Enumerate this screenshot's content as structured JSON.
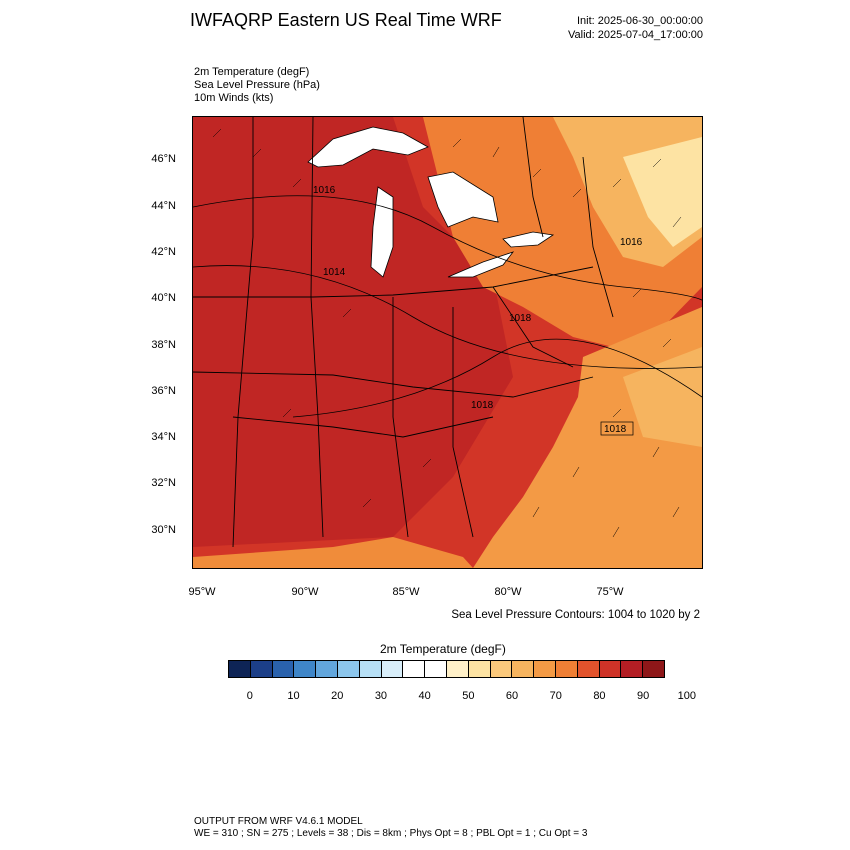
{
  "header": {
    "title": "IWFAQRP Eastern US Real Time WRF",
    "init": "Init: 2025-06-30_00:00:00",
    "valid": "Valid: 2025-07-04_17:00:00"
  },
  "fields": [
    "2m Temperature   (degF)",
    "Sea Level Pressure   (hPa)",
    "10m Winds   (kts)"
  ],
  "map": {
    "lat_labels": [
      "46°N",
      "44°N",
      "42°N",
      "40°N",
      "38°N",
      "36°N",
      "34°N",
      "32°N",
      "30°N"
    ],
    "lon_labels": [
      "95°W",
      "90°W",
      "85°W",
      "80°W",
      "75°W"
    ],
    "pressure_labels": [
      "1016",
      "1014",
      "1016",
      "1018",
      "1018",
      "1018"
    ],
    "colors": {
      "hot": "#c62a26",
      "warm": "#e2532c",
      "orange": "#f08c3a",
      "light_orange": "#f6b45f",
      "pale": "#fde3a3",
      "water_great_lakes": "#ffffff"
    }
  },
  "contour_note": "Sea Level Pressure Contours: 1004 to 1020 by 2",
  "colorbar": {
    "title": "2m Temperature  (degF)",
    "colors": [
      "#0e2456",
      "#1c3f88",
      "#2a62ad",
      "#3f86c8",
      "#62a6dc",
      "#8cc6ec",
      "#b7e0f6",
      "#d8eefa",
      "#ffffff",
      "#ffffff",
      "#fff0c8",
      "#fde3a3",
      "#fbc97c",
      "#f6b45f",
      "#f39a45",
      "#ef7f35",
      "#e2532c",
      "#cf3328",
      "#b31e24",
      "#8e1719"
    ],
    "labels": [
      "0",
      "10",
      "20",
      "30",
      "40",
      "50",
      "60",
      "70",
      "80",
      "90",
      "100"
    ]
  },
  "footer": {
    "line1": "OUTPUT FROM WRF V4.6.1 MODEL",
    "line2": "WE = 310 ; SN = 275 ; Levels = 38 ; Dis = 8km ; Phys Opt = 8 ; PBL Opt = 1 ; Cu Opt = 3"
  }
}
